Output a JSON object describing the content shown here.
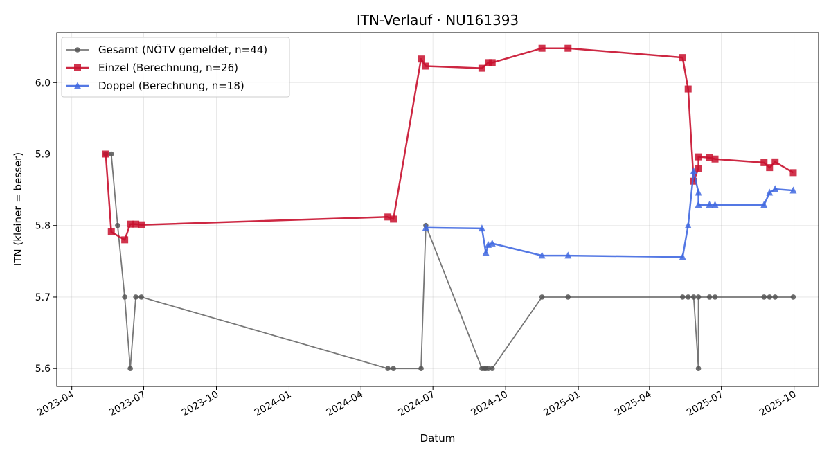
{
  "chart_data": {
    "type": "line",
    "title": "ITN-Verlauf · NU161393",
    "xlabel": "Datum",
    "ylabel": "ITN  (kleiner = besser)",
    "x_ticks": [
      "2023-04",
      "2023-07",
      "2023-10",
      "2024-01",
      "2024-04",
      "2024-07",
      "2024-10",
      "2025-01",
      "2025-04",
      "2025-07",
      "2025-10"
    ],
    "y_ticks": [
      "5.6",
      "5.7",
      "5.8",
      "5.9",
      "6.0"
    ],
    "xlim": [
      "2023-03-13",
      "2025-11-01"
    ],
    "ylim": [
      5.575,
      6.07
    ],
    "grid": true,
    "legend_position": "top-left",
    "series": [
      {
        "name": "Gesamt (NÖTV gemeldet, n=44)",
        "color": "#555555",
        "marker": "circle",
        "points": [
          [
            "2023-05-14",
            5.9
          ],
          [
            "2023-05-21",
            5.9
          ],
          [
            "2023-05-29",
            5.8
          ],
          [
            "2023-06-07",
            5.7
          ],
          [
            "2023-06-14",
            5.6
          ],
          [
            "2023-06-21",
            5.7
          ],
          [
            "2023-06-28",
            5.7
          ],
          [
            "2024-05-05",
            5.6
          ],
          [
            "2024-05-12",
            5.6
          ],
          [
            "2024-06-16",
            5.6
          ],
          [
            "2024-06-22",
            5.8
          ],
          [
            "2024-09-01",
            5.6
          ],
          [
            "2024-09-04",
            5.6
          ],
          [
            "2024-09-06",
            5.6
          ],
          [
            "2024-09-09",
            5.6
          ],
          [
            "2024-09-14",
            5.6
          ],
          [
            "2024-11-16",
            5.7
          ],
          [
            "2024-12-19",
            5.7
          ],
          [
            "2025-05-13",
            5.7
          ],
          [
            "2025-05-20",
            5.7
          ],
          [
            "2025-05-27",
            5.7
          ],
          [
            "2025-06-02",
            5.6
          ],
          [
            "2025-06-02",
            5.7
          ],
          [
            "2025-06-16",
            5.7
          ],
          [
            "2025-06-23",
            5.7
          ],
          [
            "2025-08-24",
            5.7
          ],
          [
            "2025-08-31",
            5.7
          ],
          [
            "2025-09-07",
            5.7
          ],
          [
            "2025-09-30",
            5.7
          ]
        ]
      },
      {
        "name": "Einzel (Berechnung, n=26)",
        "color": "#c8102e",
        "marker": "square",
        "points": [
          [
            "2023-05-14",
            5.9
          ],
          [
            "2023-05-21",
            5.791
          ],
          [
            "2023-06-07",
            5.78
          ],
          [
            "2023-06-14",
            5.802
          ],
          [
            "2023-06-21",
            5.802
          ],
          [
            "2023-06-28",
            5.801
          ],
          [
            "2024-05-05",
            5.812
          ],
          [
            "2024-05-12",
            5.809
          ],
          [
            "2024-06-16",
            6.033
          ],
          [
            "2024-06-22",
            6.023
          ],
          [
            "2024-09-01",
            6.02
          ],
          [
            "2024-09-09",
            6.028
          ],
          [
            "2024-09-14",
            6.028
          ],
          [
            "2024-11-16",
            6.048
          ],
          [
            "2024-12-19",
            6.048
          ],
          [
            "2025-05-13",
            6.035
          ],
          [
            "2025-05-20",
            5.991
          ],
          [
            "2025-05-27",
            5.862
          ],
          [
            "2025-06-02",
            5.88
          ],
          [
            "2025-06-02",
            5.896
          ],
          [
            "2025-06-16",
            5.895
          ],
          [
            "2025-06-23",
            5.893
          ],
          [
            "2025-08-24",
            5.888
          ],
          [
            "2025-08-31",
            5.881
          ],
          [
            "2025-09-07",
            5.889
          ],
          [
            "2025-09-30",
            5.874
          ]
        ]
      },
      {
        "name": "Doppel (Berechnung, n=18)",
        "color": "#4169e1",
        "marker": "triangle",
        "points": [
          [
            "2024-06-22",
            5.797
          ],
          [
            "2024-09-01",
            5.796
          ],
          [
            "2024-09-06",
            5.762
          ],
          [
            "2024-09-09",
            5.773
          ],
          [
            "2024-09-14",
            5.775
          ],
          [
            "2024-11-16",
            5.758
          ],
          [
            "2024-12-19",
            5.758
          ],
          [
            "2025-05-13",
            5.756
          ],
          [
            "2025-05-20",
            5.8
          ],
          [
            "2025-05-27",
            5.876
          ],
          [
            "2025-06-02",
            5.846
          ],
          [
            "2025-06-02",
            5.829
          ],
          [
            "2025-06-16",
            5.829
          ],
          [
            "2025-06-23",
            5.829
          ],
          [
            "2025-08-24",
            5.829
          ],
          [
            "2025-08-31",
            5.846
          ],
          [
            "2025-09-07",
            5.851
          ],
          [
            "2025-09-30",
            5.849
          ]
        ]
      }
    ]
  }
}
